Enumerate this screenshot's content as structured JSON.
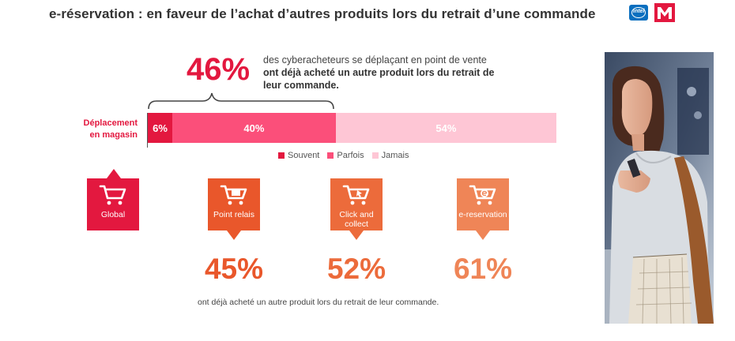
{
  "title": "e-réservation : en faveur de l’achat d’autres produits lors du retrait d’une commande",
  "logos": {
    "intel_text": "intel"
  },
  "headline": {
    "value": "46%",
    "desc_plain": "des cyberacheteurs se déplaçant en point de vente ",
    "desc_bold": "ont déjà acheté un autre produit lors du retrait de leur commande."
  },
  "colors": {
    "accent": "#e3183f",
    "souvent": "#e3183f",
    "parfois": "#fb4f7a",
    "jamais": "#fec6d5",
    "orange_dark": "#e9572b",
    "orange_mid": "#ec6b3b",
    "orange_light": "#ef8557"
  },
  "chart_data": [
    {
      "type": "bar",
      "orientation": "horizontal-stacked",
      "categories": [
        "Déplacement en magasin"
      ],
      "series": [
        {
          "name": "Souvent",
          "values": [
            6
          ]
        },
        {
          "name": "Parfois",
          "values": [
            40
          ]
        },
        {
          "name": "Jamais",
          "values": [
            54
          ]
        }
      ],
      "data_labels": [
        "6%",
        "40%",
        "54%"
      ],
      "unit": "%",
      "legend": "bottom"
    }
  ],
  "row_label": "Déplacement en magasin",
  "legend": [
    {
      "label": "Souvent"
    },
    {
      "label": "Parfois"
    },
    {
      "label": "Jamais"
    }
  ],
  "cards": [
    {
      "label": "Global",
      "value": ""
    },
    {
      "label": "Point relais",
      "value": "45%"
    },
    {
      "label": "Click and collect",
      "value": "52%"
    },
    {
      "label": "e-reservation",
      "value": "61%"
    }
  ],
  "footnote": "ont déjà acheté un autre produit lors du retrait de leur commande."
}
